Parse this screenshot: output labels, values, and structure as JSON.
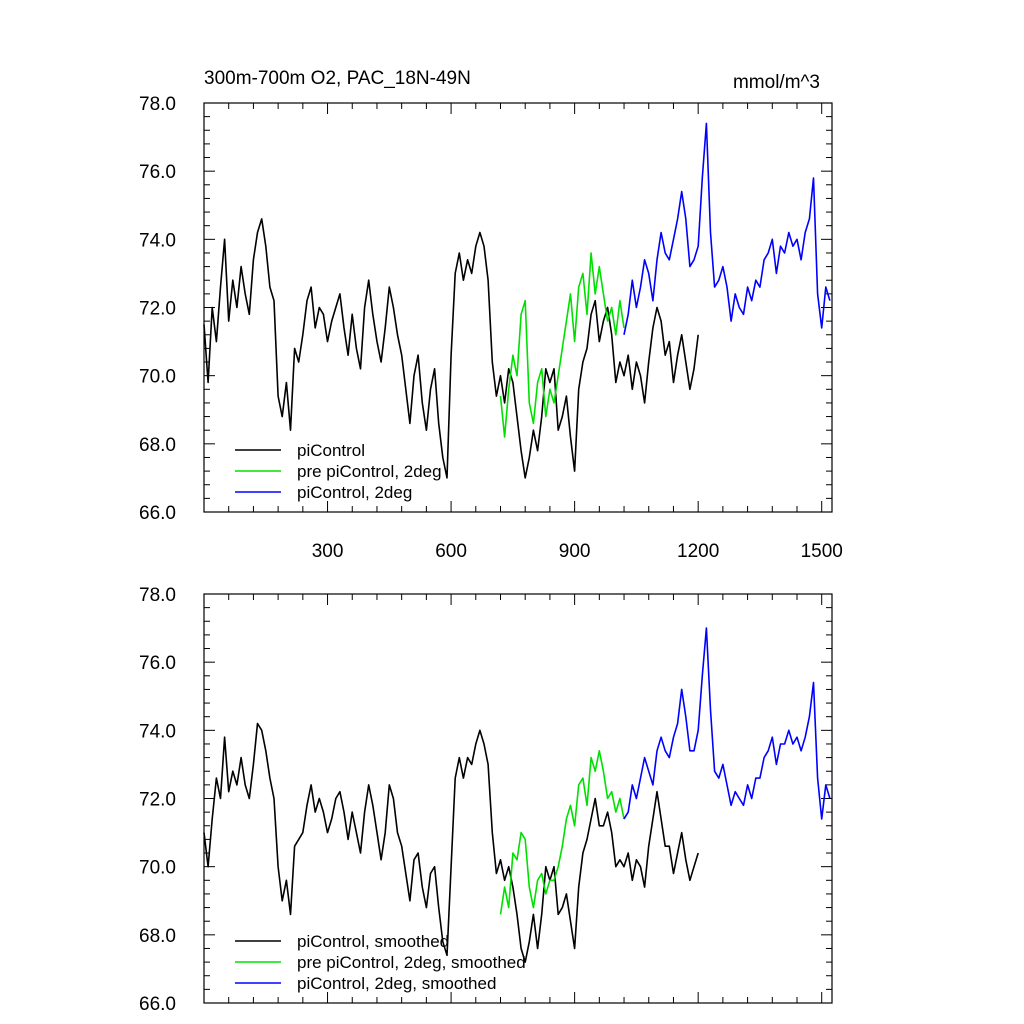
{
  "chart_data": [
    {
      "type": "line",
      "title": "300m-700m O2, PAC_18N-49N",
      "units": "mmol/m^3",
      "xlim": [
        0,
        1525
      ],
      "ylim": [
        66.0,
        78.0
      ],
      "xticks": [
        300,
        600,
        900,
        1200,
        1500
      ],
      "xtick_labels": [
        "300",
        "600",
        "900",
        "1200",
        "1500"
      ],
      "yticks": [
        66.0,
        68.0,
        70.0,
        72.0,
        74.0,
        76.0,
        78.0
      ],
      "ytick_labels": [
        "66.0",
        "68.0",
        "70.0",
        "72.0",
        "74.0",
        "76.0",
        "78.0"
      ],
      "legend_position": "bottom-left",
      "series": [
        {
          "name": "piControl",
          "color": "#000000",
          "x": [
            0,
            10,
            20,
            30,
            40,
            50,
            60,
            70,
            80,
            90,
            100,
            110,
            120,
            130,
            140,
            150,
            160,
            170,
            180,
            190,
            200,
            210,
            220,
            230,
            240,
            250,
            260,
            270,
            280,
            290,
            300,
            310,
            320,
            330,
            340,
            350,
            360,
            370,
            380,
            390,
            400,
            410,
            420,
            430,
            440,
            450,
            460,
            470,
            480,
            490,
            500,
            510,
            520,
            530,
            540,
            550,
            560,
            570,
            580,
            590,
            600,
            610,
            620,
            630,
            640,
            650,
            660,
            670,
            680,
            690,
            700,
            710,
            720,
            730,
            740,
            750,
            760,
            770,
            780,
            790,
            800,
            810,
            820,
            830,
            840,
            850,
            860,
            870,
            880,
            890,
            900,
            910,
            920,
            930,
            940,
            950,
            960,
            970,
            980,
            990,
            1000,
            1010,
            1020,
            1030,
            1040,
            1050,
            1060,
            1070,
            1080,
            1090,
            1100,
            1110,
            1120,
            1130,
            1140,
            1150,
            1160,
            1170,
            1180,
            1190,
            1200
          ],
          "y": [
            71.5,
            69.8,
            72.0,
            71.0,
            72.6,
            74.0,
            71.6,
            72.8,
            72.0,
            73.2,
            72.4,
            71.8,
            73.4,
            74.2,
            74.6,
            73.8,
            72.6,
            72.2,
            69.4,
            68.8,
            69.8,
            68.4,
            70.8,
            70.4,
            71.2,
            72.2,
            72.6,
            71.4,
            72.0,
            71.8,
            71.0,
            71.6,
            72.0,
            72.4,
            71.4,
            70.6,
            71.8,
            70.8,
            70.2,
            72.0,
            72.8,
            71.8,
            71.0,
            70.4,
            71.4,
            72.6,
            72.0,
            71.2,
            70.6,
            69.6,
            68.6,
            70.0,
            70.6,
            69.2,
            68.4,
            69.6,
            70.2,
            68.6,
            67.6,
            67.0,
            70.6,
            73.0,
            73.6,
            72.8,
            73.4,
            73.0,
            73.8,
            74.2,
            73.8,
            72.8,
            70.4,
            69.4,
            70.0,
            69.2,
            70.2,
            69.8,
            68.8,
            67.8,
            67.0,
            67.6,
            68.4,
            67.8,
            68.8,
            70.2,
            69.8,
            70.2,
            68.4,
            68.8,
            69.4,
            68.2,
            67.2,
            69.6,
            70.4,
            70.8,
            71.8,
            72.2,
            71.0,
            71.6,
            72.0,
            71.2,
            69.8,
            70.4,
            70.0,
            70.6,
            69.6,
            70.4,
            70.0,
            69.2,
            70.4,
            71.4,
            72.0,
            71.6,
            70.6,
            71.0,
            69.8,
            70.6,
            71.2,
            70.4,
            69.6,
            70.2,
            71.2
          ]
        },
        {
          "name": "pre piControl, 2deg",
          "color": "#00e000",
          "x": [
            720,
            730,
            740,
            750,
            760,
            770,
            780,
            790,
            800,
            810,
            820,
            830,
            840,
            850,
            860,
            870,
            880,
            890,
            900,
            910,
            920,
            930,
            940,
            950,
            960,
            970,
            980,
            990,
            1000,
            1010,
            1020
          ],
          "y": [
            69.4,
            68.2,
            69.6,
            70.6,
            70.0,
            71.8,
            72.2,
            69.2,
            68.6,
            69.8,
            70.2,
            68.8,
            69.6,
            69.2,
            70.0,
            70.8,
            71.6,
            72.4,
            71.0,
            72.6,
            73.0,
            71.8,
            73.6,
            72.4,
            73.2,
            72.4,
            71.6,
            72.0,
            71.2,
            72.2,
            71.4
          ]
        },
        {
          "name": "piControl, 2deg",
          "color": "#0000ff",
          "x": [
            1020,
            1030,
            1040,
            1050,
            1060,
            1070,
            1080,
            1090,
            1100,
            1110,
            1120,
            1130,
            1140,
            1150,
            1160,
            1170,
            1180,
            1190,
            1200,
            1210,
            1220,
            1230,
            1240,
            1250,
            1260,
            1270,
            1280,
            1290,
            1300,
            1310,
            1320,
            1330,
            1340,
            1350,
            1360,
            1370,
            1380,
            1390,
            1400,
            1410,
            1420,
            1430,
            1440,
            1450,
            1460,
            1470,
            1480,
            1490,
            1500,
            1510,
            1520
          ],
          "y": [
            71.2,
            71.8,
            72.8,
            72.0,
            72.6,
            73.4,
            73.0,
            72.2,
            73.4,
            74.2,
            73.6,
            73.4,
            74.0,
            74.6,
            75.4,
            74.6,
            73.2,
            73.4,
            73.8,
            75.8,
            77.4,
            74.2,
            72.6,
            72.8,
            73.2,
            72.6,
            71.6,
            72.4,
            72.0,
            71.8,
            72.6,
            72.2,
            72.8,
            72.6,
            73.4,
            73.6,
            74.0,
            73.0,
            73.8,
            73.6,
            74.2,
            73.8,
            74.0,
            73.4,
            74.2,
            74.6,
            75.8,
            72.4,
            71.4,
            72.6,
            72.2
          ]
        }
      ]
    },
    {
      "type": "line",
      "title": "",
      "xlim": [
        0,
        1525
      ],
      "ylim": [
        66.0,
        78.0
      ],
      "yticks": [
        66.0,
        68.0,
        70.0,
        72.0,
        74.0,
        76.0,
        78.0
      ],
      "ytick_labels": [
        "66.0",
        "68.0",
        "70.0",
        "72.0",
        "74.0",
        "76.0",
        "78.0"
      ],
      "legend_position": "bottom-left",
      "series": [
        {
          "name": "piControl, smoothed",
          "color": "#000000",
          "x": [
            0,
            10,
            20,
            30,
            40,
            50,
            60,
            70,
            80,
            90,
            100,
            110,
            120,
            130,
            140,
            150,
            160,
            170,
            180,
            190,
            200,
            210,
            220,
            230,
            240,
            250,
            260,
            270,
            280,
            290,
            300,
            310,
            320,
            330,
            340,
            350,
            360,
            370,
            380,
            390,
            400,
            410,
            420,
            430,
            440,
            450,
            460,
            470,
            480,
            490,
            500,
            510,
            520,
            530,
            540,
            550,
            560,
            570,
            580,
            590,
            600,
            610,
            620,
            630,
            640,
            650,
            660,
            670,
            680,
            690,
            700,
            710,
            720,
            730,
            740,
            750,
            760,
            770,
            780,
            790,
            800,
            810,
            820,
            830,
            840,
            850,
            860,
            870,
            880,
            890,
            900,
            910,
            920,
            930,
            940,
            950,
            960,
            970,
            980,
            990,
            1000,
            1010,
            1020,
            1030,
            1040,
            1050,
            1060,
            1070,
            1080,
            1090,
            1100,
            1110,
            1120,
            1130,
            1140,
            1150,
            1160,
            1170,
            1180,
            1190,
            1200
          ],
          "y": [
            71.0,
            70.0,
            71.4,
            72.6,
            72.0,
            73.8,
            72.2,
            72.8,
            72.4,
            73.2,
            72.4,
            72.0,
            73.0,
            74.2,
            74.0,
            73.4,
            72.6,
            72.0,
            70.0,
            69.0,
            69.6,
            68.6,
            70.6,
            70.8,
            71.0,
            71.8,
            72.4,
            71.6,
            72.0,
            71.6,
            71.0,
            71.4,
            72.0,
            72.2,
            71.6,
            70.8,
            71.6,
            71.0,
            70.4,
            71.6,
            72.4,
            71.8,
            71.0,
            70.2,
            71.0,
            72.4,
            72.0,
            71.0,
            70.6,
            69.8,
            69.0,
            70.2,
            70.4,
            69.4,
            68.8,
            69.8,
            70.0,
            68.8,
            67.8,
            67.4,
            70.0,
            72.6,
            73.2,
            72.6,
            73.2,
            73.0,
            73.6,
            74.0,
            73.6,
            73.0,
            71.0,
            69.8,
            70.2,
            69.6,
            70.0,
            69.4,
            68.6,
            67.6,
            67.2,
            67.8,
            68.6,
            67.6,
            68.6,
            70.0,
            69.6,
            70.0,
            68.6,
            68.8,
            69.2,
            68.4,
            67.6,
            69.4,
            70.4,
            70.8,
            71.4,
            72.0,
            71.2,
            71.2,
            71.6,
            71.0,
            70.0,
            70.2,
            70.0,
            70.4,
            69.6,
            70.2,
            70.0,
            69.4,
            70.6,
            71.4,
            72.2,
            71.4,
            70.6,
            70.6,
            69.8,
            70.4,
            71.0,
            70.2,
            69.6,
            70.0,
            70.4
          ]
        },
        {
          "name": "pre piControl, 2deg, smoothed",
          "color": "#00e000",
          "x": [
            720,
            730,
            740,
            750,
            760,
            770,
            780,
            790,
            800,
            810,
            820,
            830,
            840,
            850,
            860,
            870,
            880,
            890,
            900,
            910,
            920,
            930,
            940,
            950,
            960,
            970,
            980,
            990,
            1000,
            1010,
            1020
          ],
          "y": [
            68.6,
            69.4,
            68.8,
            70.4,
            70.2,
            71.0,
            70.8,
            69.4,
            68.8,
            69.6,
            69.8,
            69.2,
            69.6,
            69.6,
            70.0,
            70.6,
            71.4,
            71.8,
            71.2,
            72.4,
            72.6,
            71.8,
            73.2,
            72.8,
            73.4,
            72.8,
            72.0,
            72.2,
            71.6,
            72.0,
            71.4
          ]
        },
        {
          "name": "piControl, 2deg, smoothed",
          "color": "#0000ff",
          "x": [
            1020,
            1030,
            1040,
            1050,
            1060,
            1070,
            1080,
            1090,
            1100,
            1110,
            1120,
            1130,
            1140,
            1150,
            1160,
            1170,
            1180,
            1190,
            1200,
            1210,
            1220,
            1230,
            1240,
            1250,
            1260,
            1270,
            1280,
            1290,
            1300,
            1310,
            1320,
            1330,
            1340,
            1350,
            1360,
            1370,
            1380,
            1390,
            1400,
            1410,
            1420,
            1430,
            1440,
            1450,
            1460,
            1470,
            1480,
            1490,
            1500,
            1510,
            1520
          ],
          "y": [
            71.4,
            71.6,
            72.4,
            72.0,
            72.6,
            73.2,
            72.8,
            72.4,
            73.4,
            73.8,
            73.4,
            73.2,
            73.8,
            74.2,
            75.2,
            74.4,
            73.4,
            73.4,
            74.0,
            75.6,
            77.0,
            74.6,
            72.8,
            72.6,
            73.0,
            72.4,
            71.8,
            72.2,
            72.0,
            71.8,
            72.4,
            72.0,
            72.6,
            72.6,
            73.2,
            73.4,
            73.8,
            73.0,
            73.6,
            73.6,
            74.0,
            73.6,
            73.8,
            73.4,
            73.8,
            74.4,
            75.4,
            72.6,
            71.4,
            72.4,
            72.0
          ]
        }
      ]
    }
  ]
}
